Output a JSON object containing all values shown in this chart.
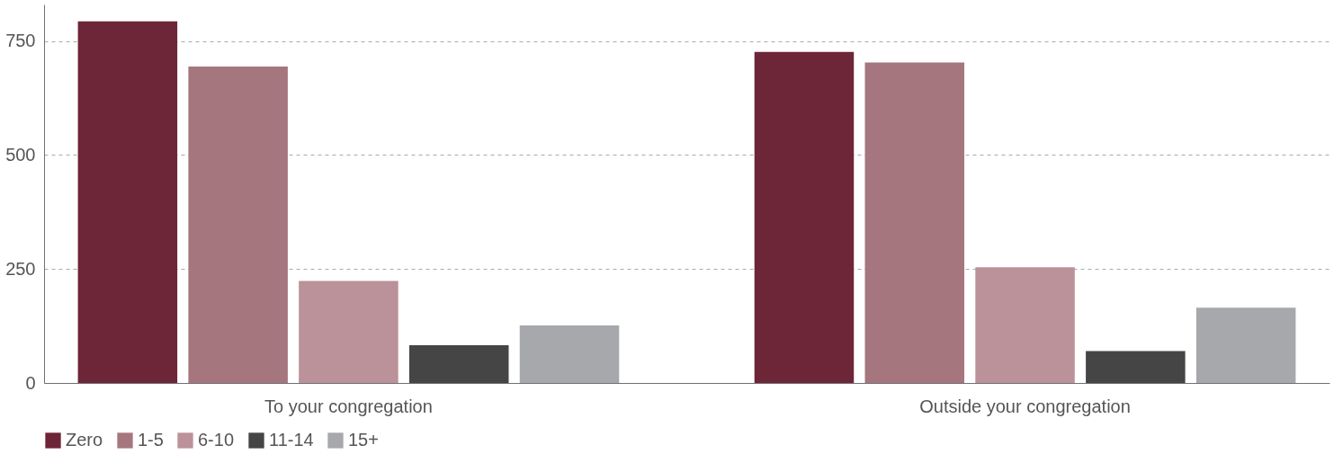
{
  "chart_data": {
    "type": "bar",
    "categories": [
      "To your congregation",
      "Outside your congregation"
    ],
    "series": [
      {
        "name": "Zero",
        "color": "#6d2637",
        "values": [
          793,
          726
        ]
      },
      {
        "name": "1-5",
        "color": "#a6767f",
        "values": [
          694,
          703
        ]
      },
      {
        "name": "6-10",
        "color": "#bb9299",
        "values": [
          224,
          254
        ]
      },
      {
        "name": "11-14",
        "color": "#454545",
        "values": [
          83,
          70
        ]
      },
      {
        "name": "15+",
        "color": "#a7a8ab",
        "values": [
          126,
          165
        ]
      }
    ],
    "ylim": [
      0,
      830
    ],
    "yticks": [
      0,
      250,
      500,
      750
    ],
    "grid": "y",
    "legend": "bottom"
  }
}
